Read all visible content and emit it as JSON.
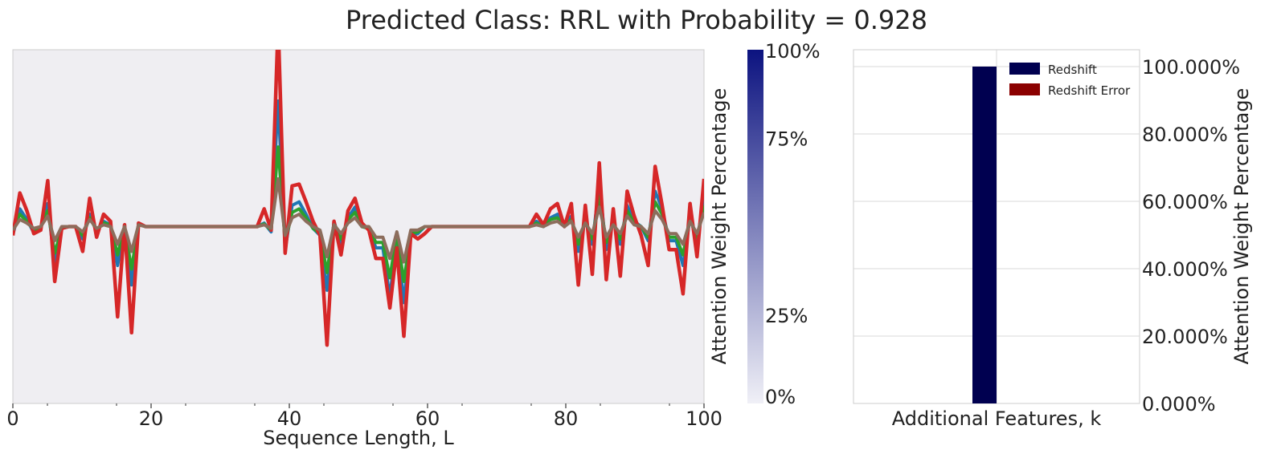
{
  "title": "Predicted Class: RRL with Probability = 0.928",
  "colors": {
    "panel_bg": "#efeef2",
    "series": [
      "#1f77b4",
      "#2ca02c",
      "#d62728",
      "#8c6d5c"
    ],
    "colorbar_top": "#0c1380",
    "colorbar_bottom": "#f0f0f7",
    "redshift": "#000050",
    "redshift_error": "#8b0000"
  },
  "chart_data": [
    {
      "type": "line",
      "xlabel": "Sequence Length, L",
      "ylabel": "",
      "xlim": [
        0,
        100
      ],
      "ylim": [
        -1.0,
        1.0
      ],
      "x_ticks": [
        "0",
        "20",
        "40",
        "60",
        "80",
        "100"
      ],
      "grid": false,
      "series": [
        {
          "values": [
            -0.045,
            0.1,
            0.04,
            -0.035,
            -0.01,
            0.13,
            -0.22,
            -0.01,
            0.0,
            0.0,
            -0.07,
            0.07,
            -0.03,
            0.03,
            0.01,
            -0.22,
            0.0,
            -0.33,
            0.02,
            0.0,
            0.0,
            0.0,
            0.0,
            0.0,
            0.0,
            0.0,
            0.0,
            0.0,
            0.0,
            0.0,
            0.0,
            0.0,
            0.0,
            0.0,
            0.0,
            0.0,
            0.02,
            -0.03,
            0.71,
            -0.13,
            0.12,
            0.14,
            0.07,
            -0.01,
            -0.05,
            -0.36,
            0.03,
            -0.1,
            0.05,
            0.11,
            0.0,
            -0.01,
            -0.12,
            -0.12,
            -0.4,
            -0.05,
            -0.43,
            -0.05,
            -0.04,
            0.0,
            0.0,
            0.0,
            0.0,
            0.0,
            0.0,
            0.0,
            0.0,
            0.0,
            0.0,
            0.0,
            0.0,
            0.0,
            0.0,
            0.0,
            0.0,
            0.03,
            0.0,
            0.05,
            0.07,
            0.0,
            0.06,
            -0.14,
            0.04,
            -0.1,
            0.24,
            -0.13,
            0.03,
            -0.1,
            0.12,
            0.03,
            0.0,
            -0.08,
            0.2,
            0.1,
            -0.08,
            -0.08,
            -0.22,
            0.05,
            -0.08,
            0.16
          ]
        },
        {
          "values": [
            -0.02,
            0.07,
            0.03,
            -0.02,
            -0.005,
            0.09,
            -0.15,
            -0.01,
            0.0,
            0.0,
            -0.05,
            0.05,
            -0.02,
            0.02,
            0.01,
            -0.16,
            0.0,
            -0.24,
            0.015,
            0.0,
            0.0,
            0.0,
            0.0,
            0.0,
            0.0,
            0.0,
            0.0,
            0.0,
            0.0,
            0.0,
            0.0,
            0.0,
            0.0,
            0.0,
            0.0,
            0.0,
            0.015,
            -0.02,
            0.45,
            -0.09,
            0.08,
            0.1,
            0.05,
            -0.01,
            -0.04,
            -0.26,
            0.02,
            -0.07,
            0.04,
            0.08,
            0.0,
            -0.01,
            -0.09,
            -0.09,
            -0.29,
            -0.04,
            -0.31,
            -0.04,
            -0.03,
            0.0,
            0.0,
            0.0,
            0.0,
            0.0,
            0.0,
            0.0,
            0.0,
            0.0,
            0.0,
            0.0,
            0.0,
            0.0,
            0.0,
            0.0,
            0.0,
            0.02,
            0.0,
            0.04,
            0.05,
            0.0,
            0.04,
            -0.1,
            0.03,
            -0.07,
            0.17,
            -0.09,
            0.02,
            -0.07,
            0.09,
            0.02,
            0.0,
            -0.06,
            0.14,
            0.07,
            -0.06,
            -0.06,
            -0.16,
            0.04,
            -0.06,
            0.12
          ]
        },
        {
          "values": [
            -0.05,
            0.19,
            0.09,
            -0.04,
            -0.02,
            0.26,
            -0.31,
            -0.01,
            0.0,
            0.0,
            -0.14,
            0.16,
            -0.06,
            0.07,
            0.03,
            -0.51,
            0.01,
            -0.6,
            0.02,
            0.0,
            0.0,
            0.0,
            0.0,
            0.0,
            0.0,
            0.0,
            0.0,
            0.0,
            0.0,
            0.0,
            0.0,
            0.0,
            0.0,
            0.0,
            0.0,
            0.0,
            0.1,
            -0.02,
            1.15,
            -0.15,
            0.23,
            0.24,
            0.14,
            0.03,
            -0.05,
            -0.67,
            0.03,
            -0.16,
            0.09,
            0.16,
            0.02,
            -0.02,
            -0.18,
            -0.18,
            -0.46,
            -0.12,
            -0.62,
            -0.04,
            -0.07,
            -0.04,
            0.0,
            0.0,
            0.0,
            0.0,
            0.0,
            0.0,
            0.0,
            0.0,
            0.0,
            0.0,
            0.0,
            0.0,
            0.0,
            0.0,
            0.0,
            0.07,
            0.01,
            0.1,
            0.13,
            0.0,
            0.13,
            -0.33,
            0.12,
            -0.27,
            0.36,
            -0.3,
            0.1,
            -0.28,
            0.2,
            0.06,
            -0.05,
            -0.22,
            0.34,
            0.12,
            -0.13,
            -0.13,
            -0.38,
            0.13,
            -0.17,
            0.27
          ]
        },
        {
          "values": [
            -0.02,
            0.04,
            0.02,
            -0.01,
            0.0,
            0.06,
            -0.08,
            0.0,
            0.0,
            0.0,
            -0.03,
            0.04,
            -0.01,
            0.01,
            0.0,
            -0.1,
            0.0,
            -0.14,
            0.01,
            0.0,
            0.0,
            0.0,
            0.0,
            0.0,
            0.0,
            0.0,
            0.0,
            0.0,
            0.0,
            0.0,
            0.0,
            0.0,
            0.0,
            0.0,
            0.0,
            0.0,
            0.01,
            -0.01,
            0.27,
            -0.05,
            0.05,
            0.07,
            0.03,
            0.0,
            -0.02,
            -0.17,
            0.01,
            -0.04,
            0.02,
            0.05,
            0.0,
            0.0,
            -0.06,
            -0.06,
            -0.18,
            -0.03,
            -0.2,
            -0.02,
            -0.02,
            0.0,
            0.0,
            0.0,
            0.0,
            0.0,
            0.0,
            0.0,
            0.0,
            0.0,
            0.0,
            0.0,
            0.0,
            0.0,
            0.0,
            0.0,
            0.0,
            0.01,
            0.0,
            0.02,
            0.03,
            0.0,
            0.03,
            -0.06,
            0.02,
            -0.04,
            0.11,
            -0.06,
            0.01,
            -0.04,
            0.06,
            0.01,
            0.0,
            -0.04,
            0.09,
            0.04,
            -0.04,
            -0.04,
            -0.1,
            0.03,
            -0.04,
            0.08
          ]
        }
      ]
    },
    {
      "type": "colorbar",
      "ylabel": "Attention Weight Percentage",
      "ticks": [
        "0%",
        "25%",
        "75%",
        "100%"
      ],
      "tick_values": [
        0,
        25,
        75,
        100
      ]
    },
    {
      "type": "bar",
      "categories": [
        "Redshift",
        "Redshift Error"
      ],
      "values": [
        1.0,
        0.0
      ],
      "xlabel": "Additional Features, k",
      "ylabel": "Attention Weight Percentage",
      "ylim": [
        0,
        1.05
      ],
      "y_ticks": [
        "0.000%",
        "20.000%",
        "40.000%",
        "60.000%",
        "80.000%",
        "100.000%"
      ],
      "grid": true,
      "legend": [
        "Redshift",
        "Redshift Error"
      ],
      "legend_position": "top-right"
    }
  ]
}
